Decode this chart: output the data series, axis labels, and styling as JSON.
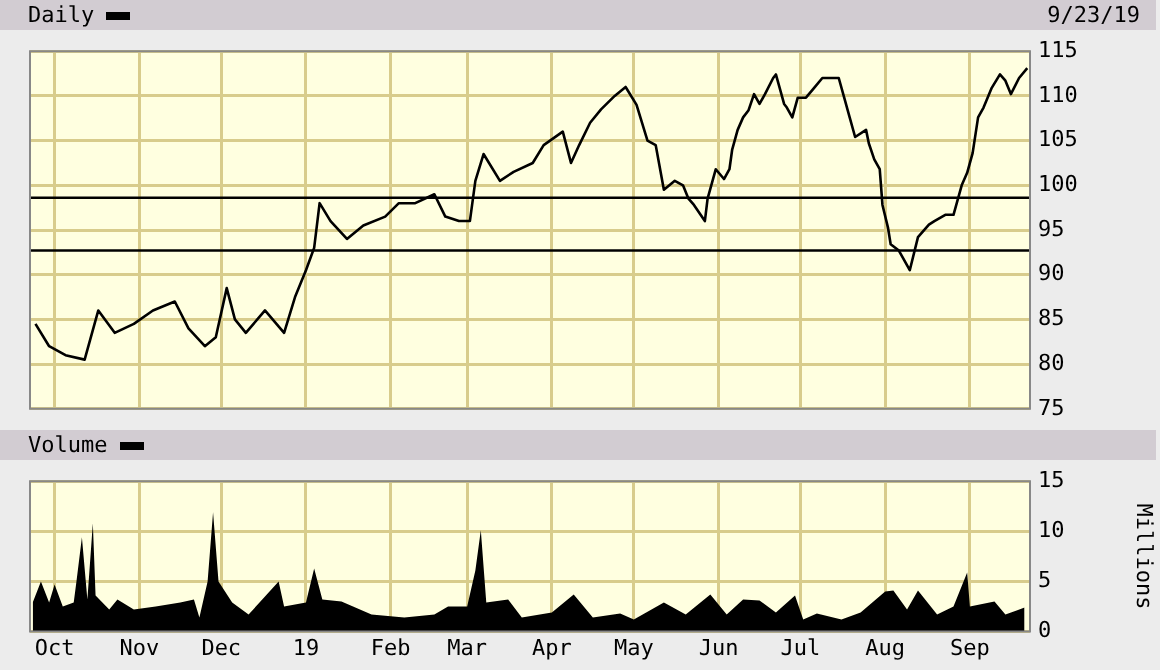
{
  "chart_data": [
    {
      "type": "line",
      "title": "Daily",
      "annotations": [
        "9/23/19"
      ],
      "tick_labels": "y",
      "grid": true,
      "marker": "none",
      "line_style": "solid",
      "xlim": [
        "2018-09-22",
        "2019-09-23"
      ],
      "xticks": [
        {
          "value": "2018-10-01",
          "label": null
        },
        {
          "value": "2018-11-01",
          "label": null
        },
        {
          "value": "2018-12-01",
          "label": null
        },
        {
          "value": "2019-01-01",
          "label": null
        },
        {
          "value": "2019-02-01",
          "label": null
        },
        {
          "value": "2019-03-01",
          "label": null
        },
        {
          "value": "2019-04-01",
          "label": null
        },
        {
          "value": "2019-05-01",
          "label": null
        },
        {
          "value": "2019-06-01",
          "label": null
        },
        {
          "value": "2019-07-01",
          "label": null
        },
        {
          "value": "2019-08-01",
          "label": null
        },
        {
          "value": "2019-09-01",
          "label": null
        }
      ],
      "ylim": [
        75,
        115
      ],
      "yticks": [
        75,
        80,
        85,
        90,
        95,
        100,
        105,
        110,
        115
      ],
      "ref_lines": [
        {
          "axis": "y",
          "value": 98.6,
          "color": "#000000"
        },
        {
          "axis": "y",
          "value": 92.7,
          "color": "#000000"
        }
      ],
      "x": [
        "2018-09-24",
        "2018-09-29",
        "2018-10-05",
        "2018-10-12",
        "2018-10-17",
        "2018-10-23",
        "2018-10-30",
        "2018-11-06",
        "2018-11-14",
        "2018-11-19",
        "2018-11-25",
        "2018-11-29",
        "2018-12-03",
        "2018-12-06",
        "2018-12-10",
        "2018-12-17",
        "2018-12-24",
        "2018-12-28",
        "2019-01-01",
        "2019-01-04",
        "2019-01-06",
        "2019-01-10",
        "2019-01-16",
        "2019-01-22",
        "2019-01-30",
        "2019-02-04",
        "2019-02-10",
        "2019-02-17",
        "2019-02-21",
        "2019-02-26",
        "2019-03-02",
        "2019-03-04",
        "2019-03-07",
        "2019-03-13",
        "2019-03-18",
        "2019-03-25",
        "2019-03-29",
        "2019-04-05",
        "2019-04-08",
        "2019-04-11",
        "2019-04-15",
        "2019-04-19",
        "2019-04-24",
        "2019-04-28",
        "2019-05-02",
        "2019-05-06",
        "2019-05-09",
        "2019-05-12",
        "2019-05-16",
        "2019-05-19",
        "2019-05-21",
        "2019-05-23",
        "2019-05-27",
        "2019-05-28",
        "2019-05-31",
        "2019-06-03",
        "2019-06-05",
        "2019-06-06",
        "2019-06-08",
        "2019-06-10",
        "2019-06-12",
        "2019-06-14",
        "2019-06-16",
        "2019-06-18",
        "2019-06-21",
        "2019-06-22",
        "2019-06-25",
        "2019-06-26",
        "2019-06-28",
        "2019-06-30",
        "2019-07-03",
        "2019-07-06",
        "2019-07-09",
        "2019-07-13",
        "2019-07-15",
        "2019-07-17",
        "2019-07-19",
        "2019-07-21",
        "2019-07-25",
        "2019-07-26",
        "2019-07-28",
        "2019-07-30",
        "2019-07-31",
        "2019-08-02",
        "2019-08-03",
        "2019-08-06",
        "2019-08-10",
        "2019-08-13",
        "2019-08-17",
        "2019-08-19",
        "2019-08-23",
        "2019-08-26",
        "2019-08-29",
        "2019-08-31",
        "2019-09-02",
        "2019-09-04",
        "2019-09-06",
        "2019-09-09",
        "2019-09-12",
        "2019-09-14",
        "2019-09-16",
        "2019-09-19",
        "2019-09-22"
      ],
      "series": [
        {
          "color": "#000000",
          "values": [
            84.5,
            82,
            81,
            80.5,
            86,
            83.5,
            84.5,
            86,
            87,
            84,
            82,
            83,
            88.5,
            85,
            83.5,
            86,
            83.5,
            87.5,
            90.5,
            93,
            98,
            96,
            94,
            95.5,
            96.5,
            98,
            98,
            99,
            96.5,
            96,
            96,
            100.5,
            103.5,
            100.5,
            101.5,
            102.5,
            104.5,
            106,
            102.5,
            104.5,
            107,
            108.5,
            110,
            111,
            109,
            105,
            104.5,
            99.5,
            100.5,
            100,
            98.5,
            97.8,
            96,
            98.5,
            101.8,
            100.7,
            101.8,
            104,
            106.2,
            107.6,
            108.4,
            110.2,
            109.1,
            110.2,
            112,
            112.4,
            109.1,
            108.7,
            107.6,
            109.8,
            109.8,
            110.9,
            112,
            112,
            112,
            109.8,
            107.6,
            105.4,
            106.2,
            104.7,
            102.9,
            101.8,
            97.8,
            95.3,
            93.4,
            92.7,
            90.5,
            94.2,
            95.6,
            96,
            96.7,
            96.7,
            100,
            101.4,
            103.6,
            107.6,
            108.7,
            110.9,
            112.4,
            111.7,
            110.2,
            112,
            113.1
          ]
        }
      ]
    },
    {
      "type": "area",
      "title": "Volume",
      "ylabel": "Millions",
      "grid": true,
      "marker": "none",
      "xlim": [
        "2018-09-22",
        "2019-09-23"
      ],
      "xticks": [
        {
          "value": "2018-10-01",
          "label": "Oct"
        },
        {
          "value": "2018-11-01",
          "label": "Nov"
        },
        {
          "value": "2018-12-01",
          "label": "Dec"
        },
        {
          "value": "2019-01-01",
          "label": "19"
        },
        {
          "value": "2019-02-01",
          "label": "Feb"
        },
        {
          "value": "2019-03-01",
          "label": "Mar"
        },
        {
          "value": "2019-04-01",
          "label": "Apr"
        },
        {
          "value": "2019-05-01",
          "label": "May"
        },
        {
          "value": "2019-06-01",
          "label": "Jun"
        },
        {
          "value": "2019-07-01",
          "label": "Jul"
        },
        {
          "value": "2019-08-01",
          "label": "Aug"
        },
        {
          "value": "2019-09-01",
          "label": "Sep"
        }
      ],
      "ylim": [
        0,
        15
      ],
      "yticks": [
        0,
        5,
        10,
        15
      ],
      "x": [
        "2018-09-23",
        "2018-09-26",
        "2018-09-29",
        "2018-10-01",
        "2018-10-04",
        "2018-10-08",
        "2018-10-09",
        "2018-10-11",
        "2018-10-13",
        "2018-10-15",
        "2018-10-16",
        "2018-10-21",
        "2018-10-24",
        "2018-10-30",
        "2018-11-07",
        "2018-11-16",
        "2018-11-21",
        "2018-11-23",
        "2018-11-26",
        "2018-11-28",
        "2018-11-30",
        "2018-12-05",
        "2018-12-11",
        "2018-12-16",
        "2018-12-22",
        "2018-12-24",
        "2019-01-01",
        "2019-01-04",
        "2019-01-07",
        "2019-01-14",
        "2019-01-25",
        "2019-02-06",
        "2019-02-17",
        "2019-02-22",
        "2019-03-01",
        "2019-03-04",
        "2019-03-06",
        "2019-03-08",
        "2019-03-16",
        "2019-03-21",
        "2019-04-01",
        "2019-04-09",
        "2019-04-16",
        "2019-04-26",
        "2019-05-01",
        "2019-05-12",
        "2019-05-20",
        "2019-05-29",
        "2019-06-04",
        "2019-06-10",
        "2019-06-16",
        "2019-06-22",
        "2019-06-29",
        "2019-07-02",
        "2019-07-07",
        "2019-07-16",
        "2019-07-23",
        "2019-08-01",
        "2019-08-04",
        "2019-08-09",
        "2019-08-13",
        "2019-08-20",
        "2019-08-26",
        "2019-08-31",
        "2019-09-01",
        "2019-09-10",
        "2019-09-14",
        "2019-09-21"
      ],
      "series": [
        {
          "color": "#000000",
          "values": [
            2.9,
            5,
            2.9,
            4.7,
            2.5,
            2.9,
            5,
            9.4,
            3.2,
            10.8,
            3.6,
            2.2,
            3.2,
            2.2,
            2.5,
            2.9,
            3.2,
            1.4,
            5,
            11.9,
            5,
            2.9,
            1.7,
            3.2,
            5,
            2.5,
            2.9,
            6.3,
            3.2,
            3,
            1.7,
            1.4,
            1.7,
            2.5,
            2.5,
            6.1,
            10.1,
            2.9,
            3.2,
            1.4,
            1.9,
            3.7,
            1.4,
            1.8,
            1.2,
            2.9,
            1.7,
            3.7,
            1.7,
            3.2,
            3.1,
            1.9,
            3.6,
            1.2,
            1.8,
            1.2,
            1.9,
            4,
            4.1,
            2.2,
            4.1,
            1.7,
            2.5,
            5.9,
            2.5,
            3,
            1.7,
            2.4
          ]
        }
      ]
    }
  ]
}
